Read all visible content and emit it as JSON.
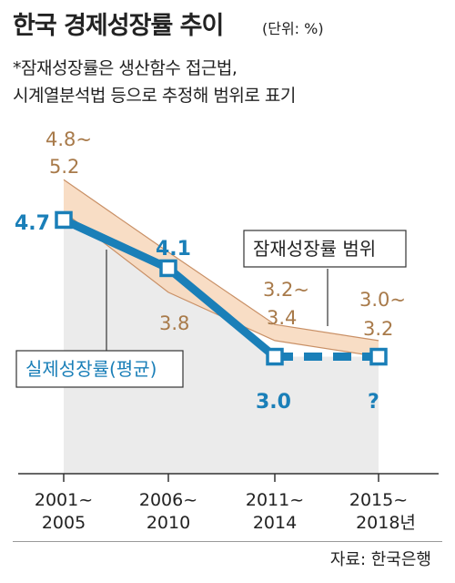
{
  "header": {
    "title": "한국 경제성장률 추이",
    "unit": "(단위: %)",
    "note_line1": "*잠재성장률은 생산함수 접근법,",
    "note_line2": "시계열분석법 등으로 추정해 범위로 표기"
  },
  "source": "자료: 한국은행",
  "colors": {
    "actual_line": "#1a7fb8",
    "range_fill": "#f7d9bf",
    "range_stroke": "#c99066",
    "range_label": "#a87a4a",
    "background_area": "#ebebeb",
    "actual_label": "#1a7fb8"
  },
  "chart_data": {
    "type": "line",
    "categories": [
      "2001~\n2005",
      "2006~\n2010",
      "2011~\n2014",
      "2015~\n2018년"
    ],
    "tick_labels": [
      {
        "line1": "2001~",
        "line2": "2005"
      },
      {
        "line1": "2006~",
        "line2": "2010"
      },
      {
        "line1": "2011~",
        "line2": "2014"
      },
      {
        "line1": "2015~",
        "line2": "2018년"
      }
    ],
    "series": [
      {
        "name": "실제성장률(평균)",
        "values": [
          4.7,
          4.1,
          3.0,
          null
        ],
        "labels": [
          "4.7",
          "4.1",
          "3.0",
          "?"
        ],
        "projected_value": 3.0
      },
      {
        "name": "잠재성장률 범위",
        "low": [
          4.8,
          3.8,
          3.2,
          3.0
        ],
        "high": [
          5.2,
          4.3,
          3.4,
          3.2
        ],
        "labels": [
          {
            "line1": "4.8~",
            "line2": "5.2"
          },
          {
            "line1": "",
            "line2": "3.8"
          },
          {
            "line1": "3.2~",
            "line2": "3.4"
          },
          {
            "line1": "3.0~",
            "line2": "3.2"
          }
        ]
      }
    ],
    "ylim": [
      1.5,
      5.5
    ],
    "xlabel": "",
    "ylabel": "",
    "grid": false
  }
}
